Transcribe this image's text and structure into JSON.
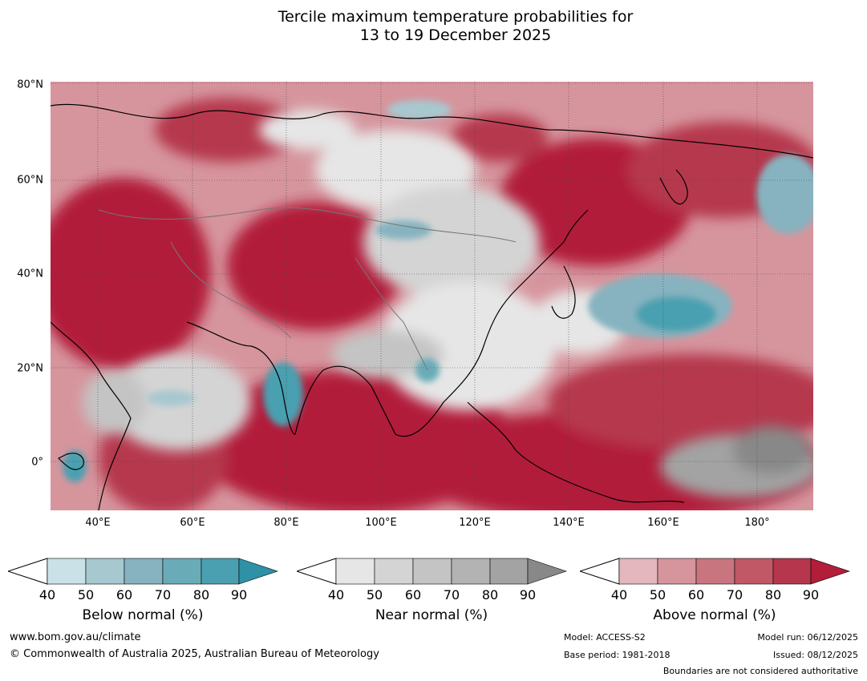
{
  "title": {
    "line1": "Tercile maximum temperature probabilities for",
    "line2": "13 to 19 December 2025"
  },
  "map": {
    "lat_labels": [
      "80°N",
      "60°N",
      "40°N",
      "20°N",
      "0°"
    ],
    "lon_labels": [
      "40°E",
      "60°E",
      "80°E",
      "100°E",
      "120°E",
      "140°E",
      "160°E",
      "180°"
    ]
  },
  "colorbars": [
    {
      "label": "Below normal (%)",
      "ticks": [
        "40",
        "50",
        "60",
        "70",
        "80",
        "90"
      ],
      "colors": [
        "#c9e1e7",
        "#a7c8cf",
        "#86b3bf",
        "#69acb8",
        "#4aa0b0",
        "#2e91a6"
      ]
    },
    {
      "label": "Near normal (%)",
      "ticks": [
        "40",
        "50",
        "60",
        "70",
        "80",
        "90"
      ],
      "colors": [
        "#e6e6e6",
        "#d4d4d4",
        "#c4c4c4",
        "#b3b3b3",
        "#a3a3a3",
        "#888888"
      ]
    },
    {
      "label": "Above normal (%)",
      "ticks": [
        "40",
        "50",
        "60",
        "70",
        "80",
        "90"
      ],
      "colors": [
        "#e3b7bd",
        "#d6959d",
        "#c97580",
        "#c05866",
        "#b6374d",
        "#b21d3a"
      ]
    }
  ],
  "footer": {
    "website": "www.bom.gov.au/climate",
    "copyright": "© Commonwealth of Australia 2025, Australian Bureau of Meteorology",
    "model": "Model: ACCESS-S2",
    "base_period": "Base period: 1981-2018",
    "model_run": "Model run: 06/12/2025",
    "issued": "Issued: 08/12/2025",
    "boundaries_note": "Boundaries are not considered authoritative"
  }
}
